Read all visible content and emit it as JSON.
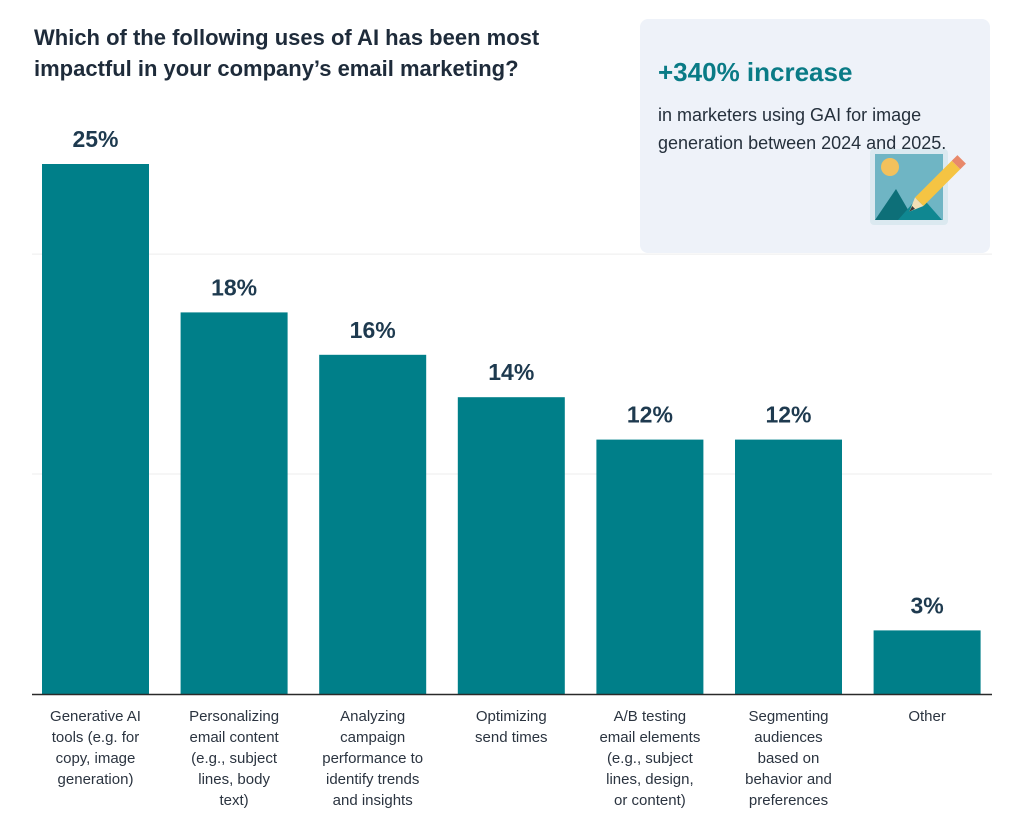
{
  "title_line1": "Which of the following uses of AI has been most",
  "title_line2": "impactful in your company’s email marketing?",
  "callout": {
    "headline": "+340% increase",
    "body": "in marketers using GAI for image generation between 2024 and 2025.",
    "icon": "image-edit-icon"
  },
  "colors": {
    "bar": "#007f89",
    "label": "#1e3a4f",
    "callout_accent": "#0a7b86",
    "callout_bg": "#eef2f9"
  },
  "chart_data": {
    "type": "bar",
    "categories": [
      "Generative AI tools (e.g. for copy, image generation)",
      "Personalizing email content (e.g., subject lines, body text)",
      "Analyzing campaign performance to identify trends and insights",
      "Optimizing send times",
      "A/B testing email elements (e.g., subject lines, design, or content)",
      "Segmenting audiences based on behavior and preferences",
      "Other"
    ],
    "category_lines": [
      [
        "Generative AI",
        "tools (e.g. for",
        "copy, image",
        "generation)"
      ],
      [
        "Personalizing",
        "email content",
        "(e.g., subject",
        "lines, body",
        "text)"
      ],
      [
        "Analyzing",
        "campaign",
        "performance to",
        "identify trends",
        "and insights"
      ],
      [
        "Optimizing",
        "send times"
      ],
      [
        "A/B testing",
        "email elements",
        "(e.g., subject",
        "lines, design,",
        "or content)"
      ],
      [
        "Segmenting",
        "audiences",
        "based on",
        "behavior and",
        "preferences"
      ],
      [
        "Other"
      ]
    ],
    "values": [
      25,
      18,
      16,
      14,
      12,
      12,
      3
    ],
    "data_labels": [
      "25%",
      "18%",
      "16%",
      "14%",
      "12%",
      "12%",
      "3%"
    ],
    "ylim": [
      0,
      25
    ],
    "grid": true,
    "legend": "none"
  }
}
